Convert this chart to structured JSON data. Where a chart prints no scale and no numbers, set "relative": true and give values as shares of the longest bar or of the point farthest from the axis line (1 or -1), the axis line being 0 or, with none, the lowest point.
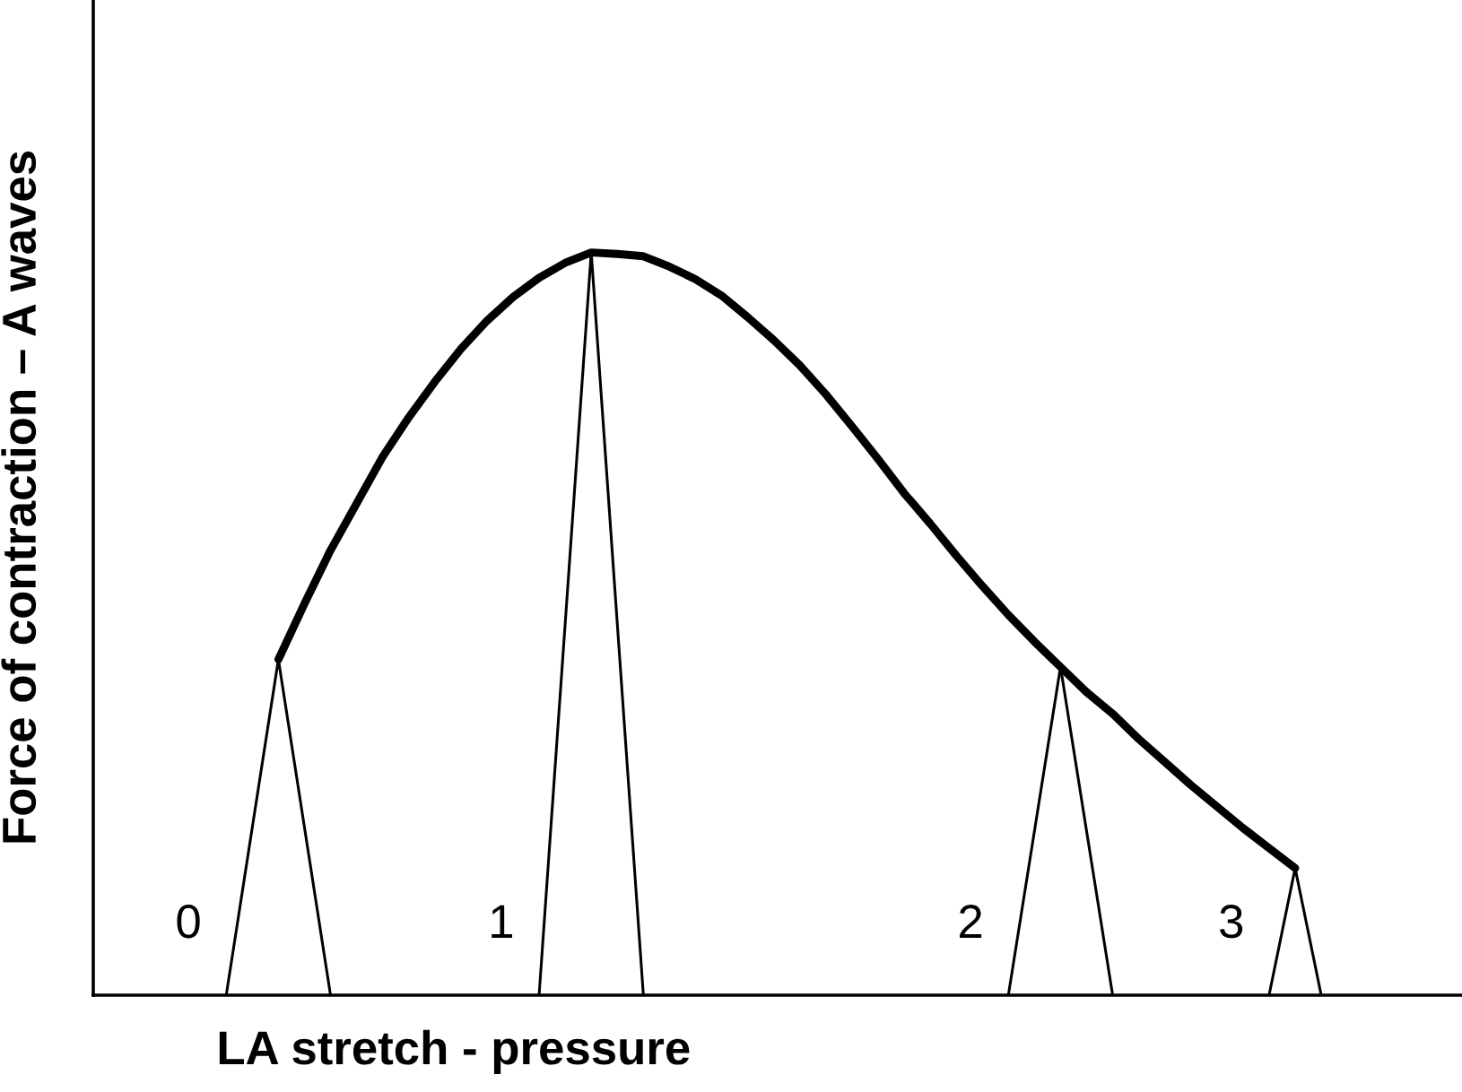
{
  "chart_data": {
    "type": "line",
    "relative": true,
    "xlabel": "LA stretch - pressure",
    "ylabel": "Force of contraction – A waves",
    "marker": "none",
    "line_style": "solid",
    "categories": [
      null,
      null,
      null,
      null,
      null,
      null,
      null,
      null,
      null,
      null,
      null,
      null,
      null,
      null,
      null,
      null,
      null,
      null,
      null,
      null,
      null,
      null,
      null,
      null,
      null,
      null,
      null,
      null,
      null,
      null,
      null,
      null,
      null,
      null,
      null,
      null,
      null,
      null,
      null,
      null,
      null,
      null,
      null,
      null,
      null,
      null,
      null,
      null,
      null,
      null,
      null,
      null,
      null
    ],
    "series": [
      {
        "color": "#000000",
        "values": [
          null,
          null,
          null,
          null,
          null,
          null,
          null,
          0.452,
          0.527,
          0.599,
          0.662,
          0.725,
          0.778,
          0.826,
          0.87,
          0.908,
          0.94,
          0.966,
          0.986,
          1.0,
          0.998,
          0.995,
          0.981,
          0.964,
          0.942,
          0.913,
          0.882,
          0.848,
          0.809,
          0.766,
          0.722,
          0.676,
          0.635,
          0.592,
          0.551,
          0.512,
          0.476,
          0.442,
          0.408,
          0.379,
          0.345,
          0.314,
          0.283,
          0.254,
          0.225,
          0.198,
          0.171,
          null,
          null,
          null,
          null,
          null,
          null
        ]
      },
      {
        "color": "#000000",
        "values": [
          null,
          null,
          null,
          null,
          null,
          0,
          0.226,
          0.452,
          0.226,
          0,
          null,
          null,
          null,
          null,
          null,
          null,
          null,
          null,
          null,
          null,
          null,
          null,
          null,
          null,
          null,
          null,
          null,
          null,
          null,
          null,
          null,
          null,
          null,
          null,
          null,
          null,
          null,
          null,
          null,
          null,
          null,
          null,
          null,
          null,
          null,
          null,
          null,
          null,
          null,
          null,
          null,
          null,
          null
        ]
      },
      {
        "color": "#000000",
        "values": [
          null,
          null,
          null,
          null,
          null,
          null,
          null,
          null,
          null,
          null,
          null,
          null,
          null,
          null,
          null,
          null,
          null,
          0,
          0.5,
          1.0,
          0.5,
          0,
          null,
          null,
          null,
          null,
          null,
          null,
          null,
          null,
          null,
          null,
          null,
          null,
          null,
          null,
          null,
          null,
          null,
          null,
          null,
          null,
          null,
          null,
          null,
          null,
          null,
          null,
          null,
          null,
          null,
          null,
          null
        ]
      },
      {
        "color": "#000000",
        "values": [
          null,
          null,
          null,
          null,
          null,
          null,
          null,
          null,
          null,
          null,
          null,
          null,
          null,
          null,
          null,
          null,
          null,
          null,
          null,
          null,
          null,
          null,
          null,
          null,
          null,
          null,
          null,
          null,
          null,
          null,
          null,
          null,
          null,
          null,
          null,
          0,
          0.221,
          0.442,
          0.221,
          0,
          null,
          null,
          null,
          null,
          null,
          null,
          null,
          null,
          null,
          null,
          null,
          null,
          null
        ]
      },
      {
        "color": "#000000",
        "values": [
          null,
          null,
          null,
          null,
          null,
          null,
          null,
          null,
          null,
          null,
          null,
          null,
          null,
          null,
          null,
          null,
          null,
          null,
          null,
          null,
          null,
          null,
          null,
          null,
          null,
          null,
          null,
          null,
          null,
          null,
          null,
          null,
          null,
          null,
          null,
          null,
          null,
          null,
          null,
          null,
          null,
          null,
          null,
          null,
          null,
          0,
          0.171,
          0,
          null,
          null,
          null,
          null,
          null
        ]
      }
    ],
    "annotations": [
      "0",
      "1",
      "2",
      "3"
    ]
  }
}
